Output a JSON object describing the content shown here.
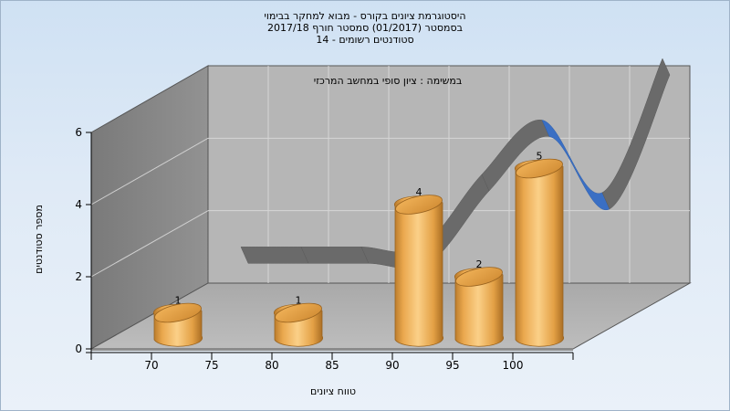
{
  "title_lines": [
    "היסטוגרמת ציונים בקורס - מבוא למחקר בבימוי",
    "בסמסטר  (01/2017)  סמסטר חורף 2017/18",
    "סטודנטים רשומים - 14"
  ],
  "note": "במשימה : ציון סופי במחשב המרכזי",
  "chart_data": {
    "type": "bar",
    "x_ticks": [
      "70",
      "75",
      "80",
      "85",
      "90",
      "95",
      "100"
    ],
    "x_tick_positions": [
      70,
      75,
      80,
      85,
      90,
      95,
      100
    ],
    "xlim": [
      65,
      105
    ],
    "ylim": [
      0,
      6
    ],
    "y_ticks": [
      "0",
      "2",
      "4",
      "6"
    ],
    "grid": true,
    "bars": [
      {
        "x": 72.5,
        "value": 1,
        "label": "1"
      },
      {
        "x": 82.5,
        "value": 1,
        "label": "1"
      },
      {
        "x": 92.5,
        "value": 4,
        "label": "4"
      },
      {
        "x": 97.5,
        "value": 2,
        "label": "2"
      },
      {
        "x": 102.5,
        "value": 5,
        "label": "5"
      }
    ],
    "curve": {
      "x": [
        70,
        75,
        80,
        85,
        90,
        95,
        100,
        105
      ],
      "values": [
        1,
        1,
        1,
        1,
        3,
        4.5,
        2.5,
        6.2
      ]
    },
    "xlabel": "טווח ציונים",
    "ylabel": "מספר סטודנטים"
  },
  "colors": {
    "bar_light": "#fbd088",
    "bar_mid": "#eaa84e",
    "bar_dark": "#b97a2a",
    "curve_gray": "#6d6d6d",
    "curve_blue": "#3a6fc4"
  }
}
